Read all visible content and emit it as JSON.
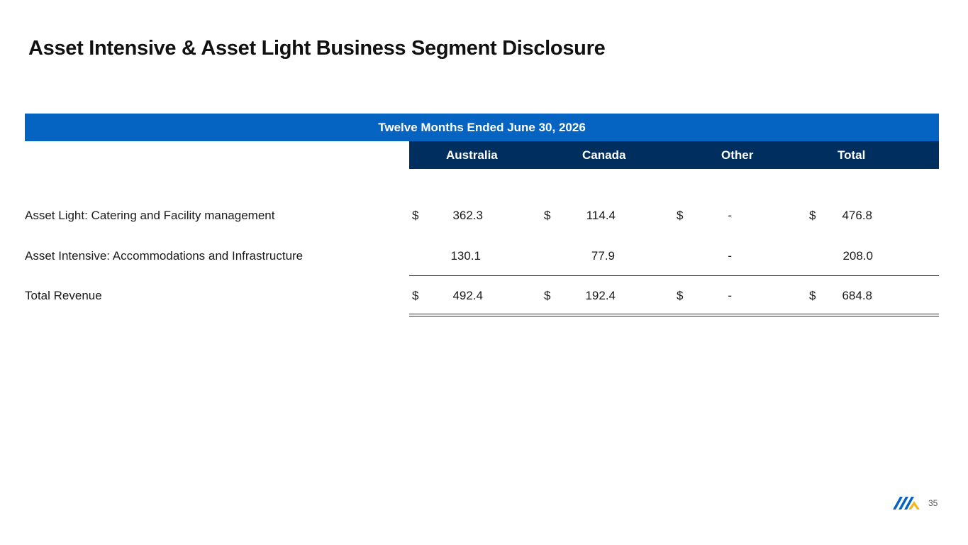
{
  "slide": {
    "title": "Asset Intensive & Asset Light Business Segment Disclosure",
    "page_number": "35",
    "logo_icon": "company-logo-icon"
  },
  "table": {
    "period_header": "Twelve Months Ended June 30, 2026",
    "columns": [
      "Australia",
      "Canada",
      "Other",
      "Total"
    ],
    "rows": [
      {
        "label": "Asset Light: Catering and Facility management",
        "currency": "$",
        "values": [
          "362.3",
          "114.4",
          "-",
          "476.8"
        ]
      },
      {
        "label": "Asset Intensive: Accommodations and Infrastructure",
        "currency": "",
        "values": [
          "130.1",
          "77.9",
          "-",
          "208.0"
        ]
      },
      {
        "label": "Total Revenue",
        "currency": "$",
        "values": [
          "492.4",
          "192.4",
          "-",
          "684.8"
        ]
      }
    ]
  },
  "colors": {
    "period_bar": "#0563c1",
    "column_header": "#002f5f",
    "logo_blue": "#0563c1",
    "logo_gold": "#f2b824"
  }
}
